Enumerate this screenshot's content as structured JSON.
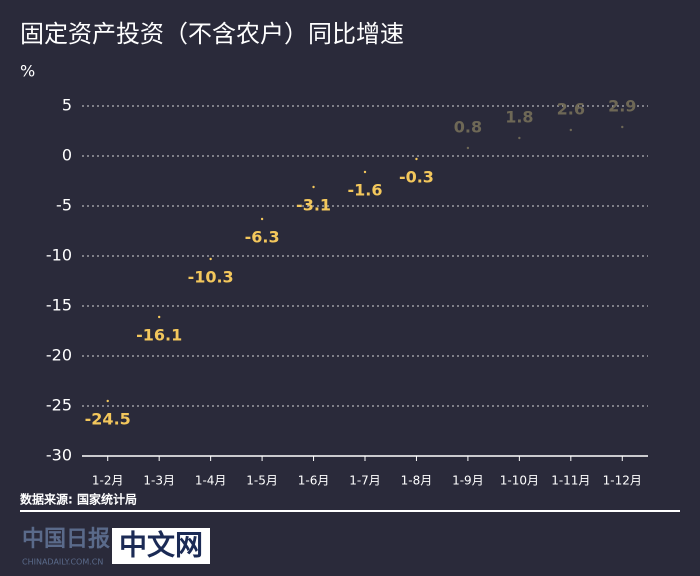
{
  "chart_data": {
    "type": "point",
    "title": "固定资产投资（不含农户）同比增速",
    "y_axis_label": "%",
    "categories": [
      "1-2月",
      "1-3月",
      "1-4月",
      "1-5月",
      "1-6月",
      "1-7月",
      "1-8月",
      "1-9月",
      "1-10月",
      "1-11月",
      "1-12月"
    ],
    "values": [
      -24.5,
      -16.1,
      -10.3,
      -6.3,
      -3.1,
      -1.6,
      -0.3,
      0.8,
      1.8,
      2.6,
      2.9
    ],
    "ylim": [
      -30,
      5
    ],
    "yticks": [
      5,
      0,
      -5,
      -10,
      -15,
      -20,
      -25,
      -30
    ],
    "grid": true,
    "negative_color": "#f3c75c",
    "positive_color": "#6e6856",
    "source": "数据来源: 国家统计局",
    "logo": {
      "brand": "中国日报",
      "site": "CHINADAILY.COM.CN",
      "name": "中文网"
    }
  }
}
